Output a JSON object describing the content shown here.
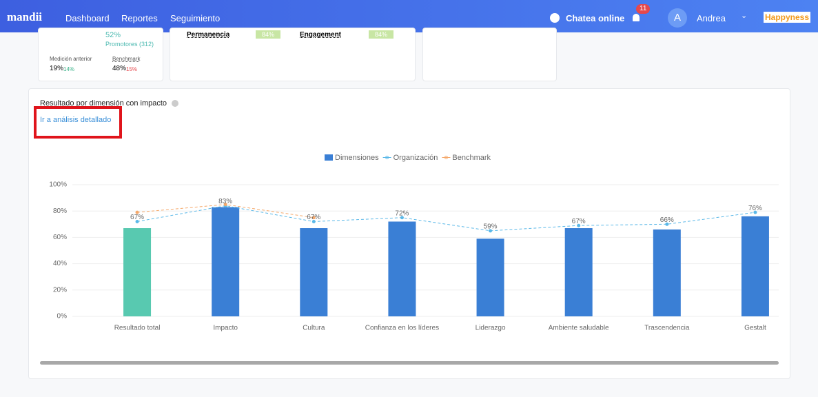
{
  "nav": {
    "logo": "mandii",
    "links": [
      "Dashboard",
      "Reportes",
      "Seguimiento"
    ],
    "chat": "Chatea online",
    "notifications": "11",
    "avatar": "A",
    "user": "Andrea",
    "brand": "Happyness"
  },
  "cards": {
    "promoters_pct": "52%",
    "promoters": "Promotores (312)",
    "previous_label": "Medición anterior",
    "benchmark_label": "Benchmark",
    "previous_value": "19%",
    "previous_delta": "14%",
    "benchmark_value": "48%",
    "benchmark_delta": "15%",
    "metrics": [
      {
        "name": "Permanencia",
        "value": "84%"
      },
      {
        "name": "Engagement",
        "value": "84%"
      }
    ]
  },
  "section": {
    "title": "Resultado por dimensión con impacto",
    "link": "Ir a análisis detallado"
  },
  "chart_data": {
    "type": "bar",
    "categories": [
      "Resultado total",
      "Impacto",
      "Cultura",
      "Confianza en los líderes",
      "Liderazgo",
      "Ambiente saludable",
      "Trascendencia",
      "Gestalt"
    ],
    "series": [
      {
        "name": "Dimensiones",
        "type": "bar",
        "color": "#3a7fd5",
        "colors": [
          "#58c9b0",
          "#3a7fd5",
          "#3a7fd5",
          "#3a7fd5",
          "#3a7fd5",
          "#3a7fd5",
          "#3a7fd5",
          "#3a7fd5"
        ],
        "values": [
          67,
          83,
          67,
          72,
          59,
          67,
          66,
          76
        ],
        "value_labels": [
          "67%",
          "83%",
          "67%",
          "72%",
          "59%",
          "67%",
          "66%",
          "76%"
        ]
      },
      {
        "name": "Organización",
        "type": "line",
        "color": "#5ab8e8",
        "values": [
          72,
          84,
          72,
          75,
          65,
          69,
          70,
          79
        ]
      },
      {
        "name": "Benchmark",
        "type": "line",
        "color": "#f5a86a",
        "values": [
          79,
          85,
          75,
          null,
          null,
          null,
          null,
          null
        ]
      }
    ],
    "ylim": [
      0,
      100
    ],
    "yticks": [
      {
        "value": 0,
        "label": "0%"
      },
      {
        "value": 20,
        "label": "20%"
      },
      {
        "value": 40,
        "label": "40%"
      },
      {
        "value": 60,
        "label": "60%"
      },
      {
        "value": 80,
        "label": "80%"
      },
      {
        "value": 100,
        "label": "100%"
      }
    ],
    "grid": true,
    "legend": "top"
  }
}
